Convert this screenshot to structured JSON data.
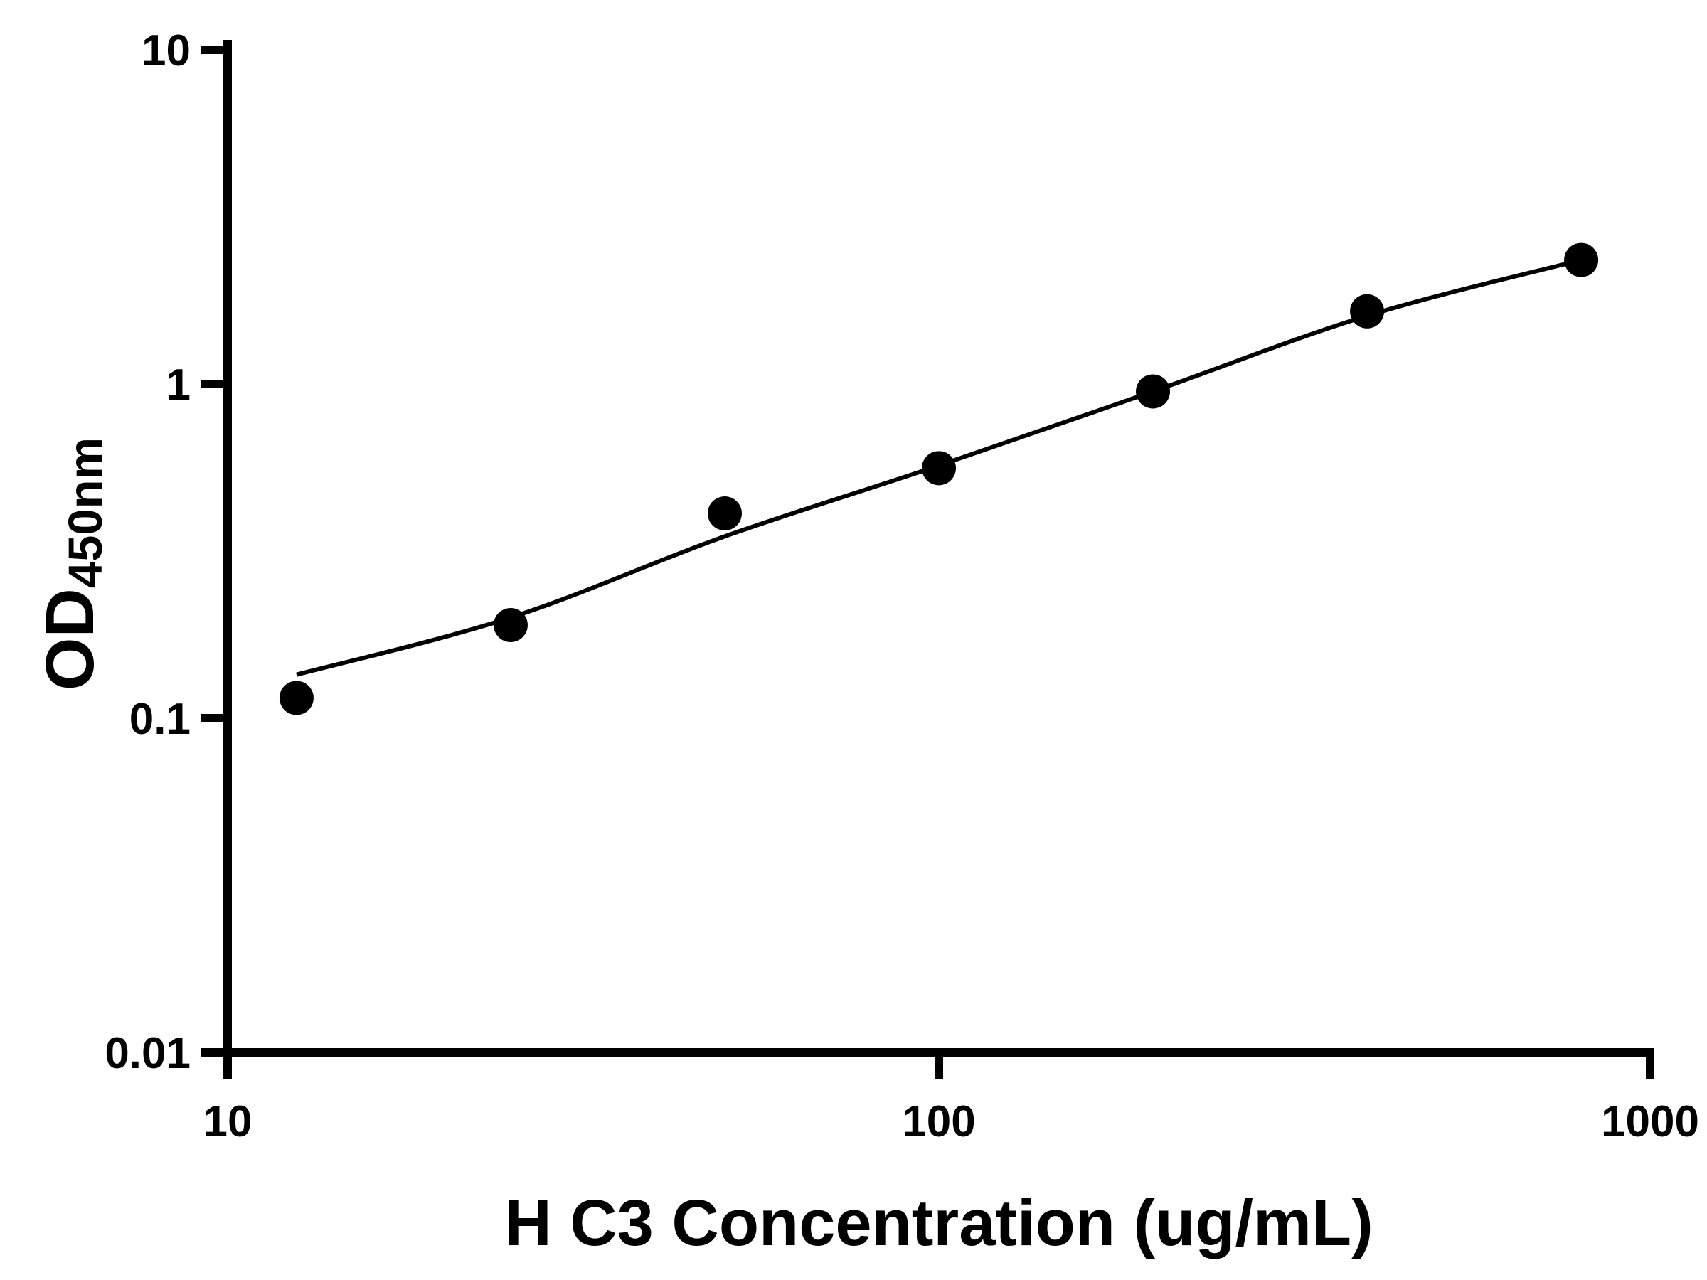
{
  "chart_data": {
    "type": "scatter",
    "title": "",
    "xlabel": "H C3 Concentration (ug/mL)",
    "ylabel_main": "OD",
    "ylabel_sub": "450nm",
    "x_scale": "log",
    "y_scale": "log",
    "xlim": [
      10,
      1000
    ],
    "ylim": [
      0.01,
      10
    ],
    "grid": false,
    "legend": false,
    "x_ticks": [
      {
        "value": 10,
        "label": "10"
      },
      {
        "value": 100,
        "label": "100"
      },
      {
        "value": 1000,
        "label": "1000"
      }
    ],
    "y_ticks": [
      {
        "value": 10,
        "label": "10"
      },
      {
        "value": 1,
        "label": "1"
      },
      {
        "value": 0.1,
        "label": "0.1"
      },
      {
        "value": 0.01,
        "label": "0.01"
      }
    ],
    "points": [
      {
        "x": 12.5,
        "y": 0.115
      },
      {
        "x": 25,
        "y": 0.19
      },
      {
        "x": 50,
        "y": 0.41
      },
      {
        "x": 100,
        "y": 0.56
      },
      {
        "x": 200,
        "y": 0.95
      },
      {
        "x": 400,
        "y": 1.65
      },
      {
        "x": 800,
        "y": 2.35
      }
    ],
    "fit_curve": [
      {
        "x": 12.5,
        "y": 0.135
      },
      {
        "x": 25,
        "y": 0.2
      },
      {
        "x": 50,
        "y": 0.35
      },
      {
        "x": 100,
        "y": 0.57
      },
      {
        "x": 200,
        "y": 0.95
      },
      {
        "x": 400,
        "y": 1.6
      },
      {
        "x": 800,
        "y": 2.35
      }
    ],
    "colors": {
      "marker": "#000000",
      "line": "#000000",
      "axis": "#000000",
      "background": "#ffffff"
    }
  }
}
